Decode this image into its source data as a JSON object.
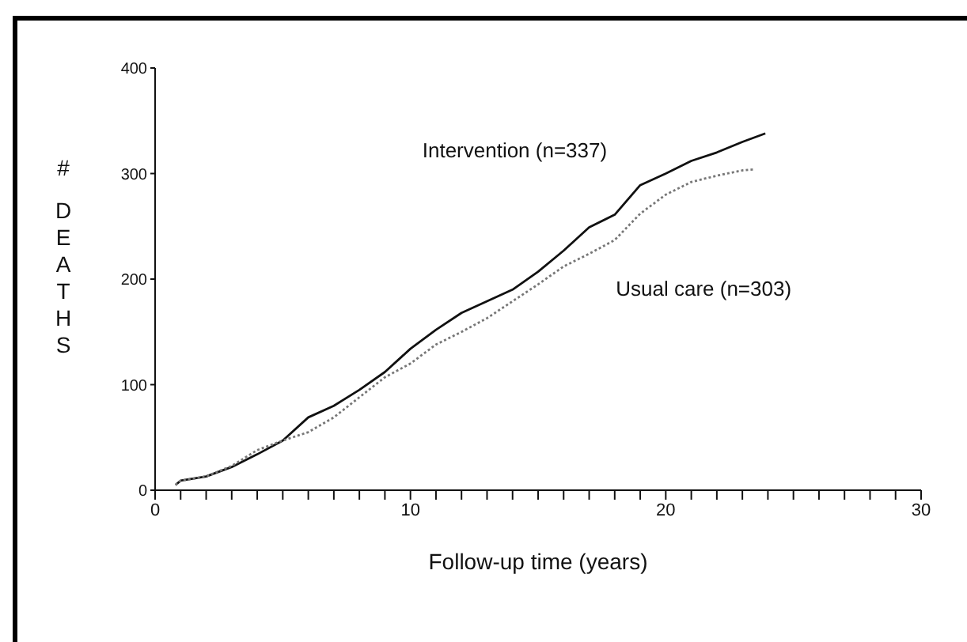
{
  "chart_data": {
    "type": "line",
    "xlabel": "Follow-up time (years)",
    "ylabel": "# DEATHS",
    "marker": "none",
    "xlim": [
      0,
      30
    ],
    "xticks": [
      0,
      {
        "value": 1,
        "label": null
      },
      {
        "value": 2,
        "label": null
      },
      {
        "value": 3,
        "label": null
      },
      {
        "value": 4,
        "label": null
      },
      {
        "value": 5,
        "label": null
      },
      {
        "value": 6,
        "label": null
      },
      {
        "value": 7,
        "label": null
      },
      {
        "value": 8,
        "label": null
      },
      {
        "value": 9,
        "label": null
      },
      10,
      {
        "value": 11,
        "label": null
      },
      {
        "value": 12,
        "label": null
      },
      {
        "value": 13,
        "label": null
      },
      {
        "value": 14,
        "label": null
      },
      {
        "value": 15,
        "label": null
      },
      {
        "value": 16,
        "label": null
      },
      {
        "value": 17,
        "label": null
      },
      {
        "value": 18,
        "label": null
      },
      {
        "value": 19,
        "label": null
      },
      20,
      {
        "value": 21,
        "label": null
      },
      {
        "value": 22,
        "label": null
      },
      {
        "value": 23,
        "label": null
      },
      {
        "value": 24,
        "label": null
      },
      {
        "value": 25,
        "label": null
      },
      {
        "value": 26,
        "label": null
      },
      {
        "value": 27,
        "label": null
      },
      {
        "value": 28,
        "label": null
      },
      {
        "value": 29,
        "label": null
      },
      30
    ],
    "ylim": [
      0,
      400
    ],
    "yticks": [
      0,
      100,
      200,
      300,
      400
    ],
    "series": [
      {
        "name": "Intervention (n=337)",
        "color": "#111111",
        "line_style": "solid",
        "x": [
          0.8,
          1,
          2,
          3,
          4,
          5,
          6,
          7,
          8,
          9,
          10,
          11,
          12,
          13,
          14,
          15,
          16,
          17,
          18,
          19,
          20,
          21,
          22,
          23,
          23.9
        ],
        "values": [
          5,
          9,
          13,
          22,
          34,
          47,
          69,
          80,
          95,
          112,
          134,
          152,
          168,
          179,
          190,
          207,
          227,
          249,
          261,
          289,
          300,
          312,
          320,
          330,
          338
        ]
      },
      {
        "name": "Usual care (n=303)",
        "color": "#777777",
        "line_style": "dotted",
        "x": [
          0.8,
          1,
          2,
          3,
          4,
          5,
          6,
          7,
          8,
          9,
          10,
          11,
          12,
          13,
          14,
          15,
          16,
          17,
          18,
          19,
          20,
          21,
          22,
          23,
          23.5
        ],
        "values": [
          5,
          9,
          13,
          23,
          38,
          47,
          55,
          69,
          88,
          107,
          120,
          138,
          150,
          163,
          179,
          195,
          212,
          224,
          237,
          262,
          280,
          292,
          298,
          303,
          304
        ]
      }
    ]
  }
}
